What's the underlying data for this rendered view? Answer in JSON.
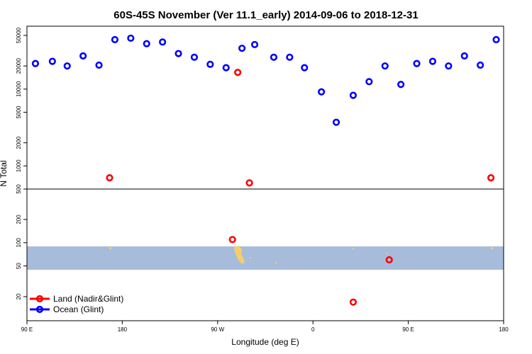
{
  "chart_data": {
    "type": "scatter",
    "title": "60S-45S November (Ver 11.1_early)   2014-09-06 to 2018-12-31",
    "xlabel": "Longitude (deg E)",
    "ylabel": "N Total",
    "y_scale": "log",
    "x_ticks": [
      {
        "value": 90,
        "label": "90 E"
      },
      {
        "value": 180,
        "label": "180"
      },
      {
        "value": 270,
        "label": "90 W"
      },
      {
        "value": 360,
        "label": "0"
      },
      {
        "value": 450,
        "label": "90 E"
      },
      {
        "value": 540,
        "label": "180"
      }
    ],
    "y_ticks_top": [
      {
        "value": 500,
        "label": "500"
      },
      {
        "value": 1000,
        "label": "1000"
      },
      {
        "value": 2000,
        "label": "2000"
      },
      {
        "value": 5000,
        "label": "5000"
      },
      {
        "value": 10000,
        "label": "10000"
      },
      {
        "value": 20000,
        "label": "20000"
      },
      {
        "value": 50000,
        "label": "50000"
      }
    ],
    "y_ticks_bottom": [
      {
        "value": 20,
        "label": "20"
      },
      {
        "value": 50,
        "label": "50"
      },
      {
        "value": 100,
        "label": "100"
      },
      {
        "value": 200,
        "label": "200"
      }
    ],
    "legend": {
      "position": "bottom-left",
      "entries": [
        {
          "label": "Land (Nadir&Glint)",
          "color": "#ff0000"
        },
        {
          "label": "Ocean (Glint)",
          "color": "#0000ff"
        }
      ]
    },
    "colors": {
      "land": "#ff0000",
      "ocean": "#0000ff",
      "ocean_band": "#a7bcdb",
      "landmass": "#f5cf6a"
    },
    "series": [
      {
        "name": "Ocean (Glint)",
        "points": [
          {
            "x": 98,
            "y": 21500
          },
          {
            "x": 114,
            "y": 23000
          },
          {
            "x": 128,
            "y": 20000
          },
          {
            "x": 143,
            "y": 27000
          },
          {
            "x": 158,
            "y": 20500
          },
          {
            "x": 173,
            "y": 44000
          },
          {
            "x": 188,
            "y": 46000
          },
          {
            "x": 203,
            "y": 39000
          },
          {
            "x": 218,
            "y": 41000
          },
          {
            "x": 233,
            "y": 29000
          },
          {
            "x": 248,
            "y": 26000
          },
          {
            "x": 263,
            "y": 21000
          },
          {
            "x": 278,
            "y": 19000
          },
          {
            "x": 293,
            "y": 34000
          },
          {
            "x": 305,
            "y": 38000
          },
          {
            "x": 323,
            "y": 26000
          },
          {
            "x": 338,
            "y": 26000
          },
          {
            "x": 352,
            "y": 19000
          },
          {
            "x": 368,
            "y": 9200
          },
          {
            "x": 382,
            "y": 3700
          },
          {
            "x": 398,
            "y": 8300
          },
          {
            "x": 413,
            "y": 12500
          },
          {
            "x": 428,
            "y": 20000
          },
          {
            "x": 443,
            "y": 11500
          },
          {
            "x": 458,
            "y": 21500
          },
          {
            "x": 473,
            "y": 23000
          },
          {
            "x": 488,
            "y": 20000
          },
          {
            "x": 503,
            "y": 27000
          },
          {
            "x": 518,
            "y": 20500
          },
          {
            "x": 533,
            "y": 44000
          }
        ]
      },
      {
        "name": "Land (Nadir&Glint)",
        "points": [
          {
            "x": 168,
            "y": 700
          },
          {
            "x": 289,
            "y": 16500
          },
          {
            "x": 300,
            "y": 600
          },
          {
            "x": 528,
            "y": 700
          },
          {
            "x": 284,
            "y": 110
          },
          {
            "x": 432,
            "y": 60
          },
          {
            "x": 398,
            "y": 17
          }
        ]
      }
    ]
  }
}
